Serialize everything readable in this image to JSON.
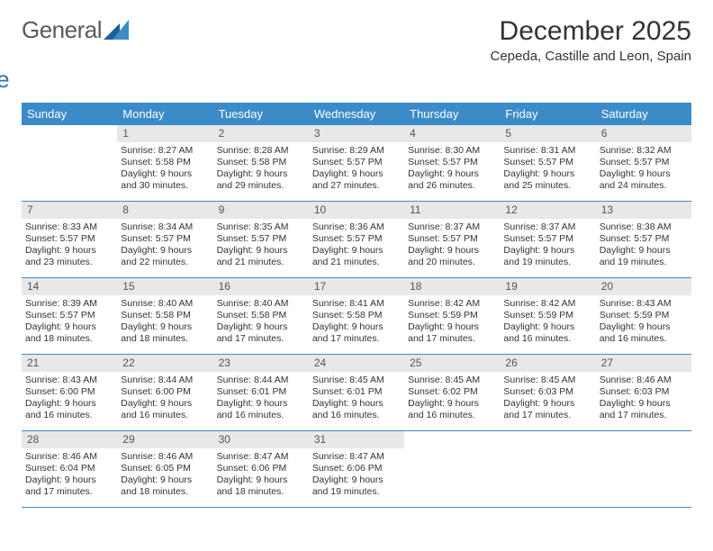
{
  "logo": {
    "text_general": "General",
    "text_blue": "Blue"
  },
  "title": {
    "month": "December 2025",
    "location": "Cepeda, Castille and Leon, Spain"
  },
  "colors": {
    "header_bg": "#3b8bc9",
    "header_text": "#ffffff",
    "daynum_bg": "#e8e8e8",
    "daynum_text": "#555555",
    "body_text": "#333333",
    "divider": "#3b8bc9",
    "logo_gray": "#5a5a5a",
    "logo_blue": "#2f75b5",
    "logo_tri1": "#1f5f99",
    "logo_tri2": "#3b8bc9"
  },
  "day_names": [
    "Sunday",
    "Monday",
    "Tuesday",
    "Wednesday",
    "Thursday",
    "Friday",
    "Saturday"
  ],
  "weeks": [
    [
      {
        "empty": true
      },
      {
        "n": "1",
        "sr": "8:27 AM",
        "ss": "5:58 PM",
        "dl": "9 hours and 30 minutes."
      },
      {
        "n": "2",
        "sr": "8:28 AM",
        "ss": "5:58 PM",
        "dl": "9 hours and 29 minutes."
      },
      {
        "n": "3",
        "sr": "8:29 AM",
        "ss": "5:57 PM",
        "dl": "9 hours and 27 minutes."
      },
      {
        "n": "4",
        "sr": "8:30 AM",
        "ss": "5:57 PM",
        "dl": "9 hours and 26 minutes."
      },
      {
        "n": "5",
        "sr": "8:31 AM",
        "ss": "5:57 PM",
        "dl": "9 hours and 25 minutes."
      },
      {
        "n": "6",
        "sr": "8:32 AM",
        "ss": "5:57 PM",
        "dl": "9 hours and 24 minutes."
      }
    ],
    [
      {
        "n": "7",
        "sr": "8:33 AM",
        "ss": "5:57 PM",
        "dl": "9 hours and 23 minutes."
      },
      {
        "n": "8",
        "sr": "8:34 AM",
        "ss": "5:57 PM",
        "dl": "9 hours and 22 minutes."
      },
      {
        "n": "9",
        "sr": "8:35 AM",
        "ss": "5:57 PM",
        "dl": "9 hours and 21 minutes."
      },
      {
        "n": "10",
        "sr": "8:36 AM",
        "ss": "5:57 PM",
        "dl": "9 hours and 21 minutes."
      },
      {
        "n": "11",
        "sr": "8:37 AM",
        "ss": "5:57 PM",
        "dl": "9 hours and 20 minutes."
      },
      {
        "n": "12",
        "sr": "8:37 AM",
        "ss": "5:57 PM",
        "dl": "9 hours and 19 minutes."
      },
      {
        "n": "13",
        "sr": "8:38 AM",
        "ss": "5:57 PM",
        "dl": "9 hours and 19 minutes."
      }
    ],
    [
      {
        "n": "14",
        "sr": "8:39 AM",
        "ss": "5:57 PM",
        "dl": "9 hours and 18 minutes."
      },
      {
        "n": "15",
        "sr": "8:40 AM",
        "ss": "5:58 PM",
        "dl": "9 hours and 18 minutes."
      },
      {
        "n": "16",
        "sr": "8:40 AM",
        "ss": "5:58 PM",
        "dl": "9 hours and 17 minutes."
      },
      {
        "n": "17",
        "sr": "8:41 AM",
        "ss": "5:58 PM",
        "dl": "9 hours and 17 minutes."
      },
      {
        "n": "18",
        "sr": "8:42 AM",
        "ss": "5:59 PM",
        "dl": "9 hours and 17 minutes."
      },
      {
        "n": "19",
        "sr": "8:42 AM",
        "ss": "5:59 PM",
        "dl": "9 hours and 16 minutes."
      },
      {
        "n": "20",
        "sr": "8:43 AM",
        "ss": "5:59 PM",
        "dl": "9 hours and 16 minutes."
      }
    ],
    [
      {
        "n": "21",
        "sr": "8:43 AM",
        "ss": "6:00 PM",
        "dl": "9 hours and 16 minutes."
      },
      {
        "n": "22",
        "sr": "8:44 AM",
        "ss": "6:00 PM",
        "dl": "9 hours and 16 minutes."
      },
      {
        "n": "23",
        "sr": "8:44 AM",
        "ss": "6:01 PM",
        "dl": "9 hours and 16 minutes."
      },
      {
        "n": "24",
        "sr": "8:45 AM",
        "ss": "6:01 PM",
        "dl": "9 hours and 16 minutes."
      },
      {
        "n": "25",
        "sr": "8:45 AM",
        "ss": "6:02 PM",
        "dl": "9 hours and 16 minutes."
      },
      {
        "n": "26",
        "sr": "8:45 AM",
        "ss": "6:03 PM",
        "dl": "9 hours and 17 minutes."
      },
      {
        "n": "27",
        "sr": "8:46 AM",
        "ss": "6:03 PM",
        "dl": "9 hours and 17 minutes."
      }
    ],
    [
      {
        "n": "28",
        "sr": "8:46 AM",
        "ss": "6:04 PM",
        "dl": "9 hours and 17 minutes."
      },
      {
        "n": "29",
        "sr": "8:46 AM",
        "ss": "6:05 PM",
        "dl": "9 hours and 18 minutes."
      },
      {
        "n": "30",
        "sr": "8:47 AM",
        "ss": "6:06 PM",
        "dl": "9 hours and 18 minutes."
      },
      {
        "n": "31",
        "sr": "8:47 AM",
        "ss": "6:06 PM",
        "dl": "9 hours and 19 minutes."
      },
      {
        "empty": true
      },
      {
        "empty": true
      },
      {
        "empty": true
      }
    ]
  ],
  "labels": {
    "sunrise": "Sunrise:",
    "sunset": "Sunset:",
    "daylight": "Daylight:"
  }
}
